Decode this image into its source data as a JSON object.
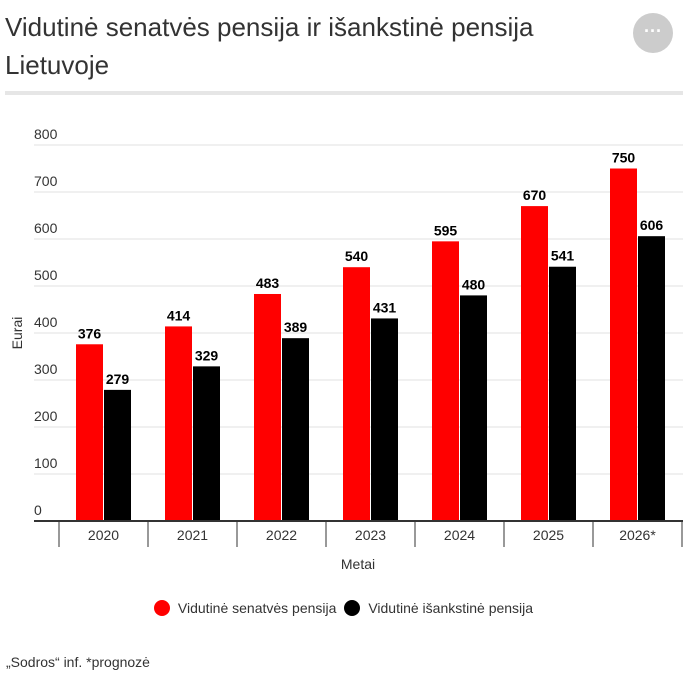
{
  "title": "Vidutinė senatvės pensija ir išankstinė pensija Lietuvoje",
  "menu_icon": "ellipsis-icon",
  "menu_label": "···",
  "note": "„Sodros“ inf. *prognozė",
  "chart_data": {
    "type": "bar",
    "xlabel": "Metai",
    "ylabel": "Eurai",
    "ylim": [
      0,
      800
    ],
    "yticks": [
      0,
      100,
      200,
      300,
      400,
      500,
      600,
      700,
      800
    ],
    "grid": true,
    "legend": "bottom",
    "categories": [
      "2020",
      "2021",
      "2022",
      "2023",
      "2024",
      "2025",
      "2026*"
    ],
    "series": [
      {
        "name": "Vidutinė senatvės pensija",
        "color": "#ff0000",
        "values": [
          376,
          414,
          483,
          540,
          595,
          670,
          750
        ]
      },
      {
        "name": "Vidutinė išankstinė pensija",
        "color": "#000000",
        "values": [
          279,
          329,
          389,
          431,
          480,
          541,
          606
        ]
      }
    ]
  }
}
